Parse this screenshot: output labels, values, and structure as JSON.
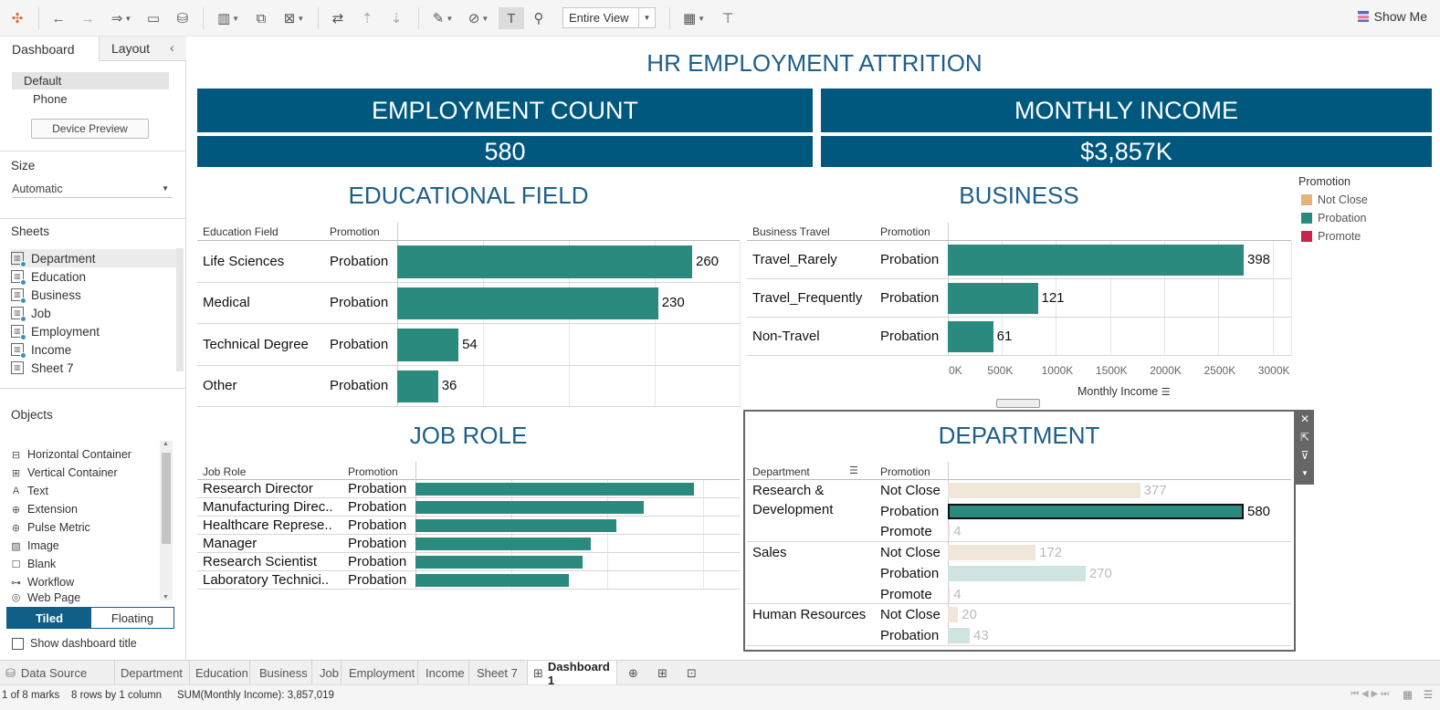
{
  "toolbar": {
    "view_select": "Entire View",
    "show_me": "Show Me"
  },
  "left_panel": {
    "tabs": [
      "Dashboard",
      "Layout"
    ],
    "device": {
      "default": "Default",
      "phone": "Phone",
      "preview_button": "Device Preview"
    },
    "size": {
      "title": "Size",
      "value": "Automatic"
    },
    "sheets": {
      "title": "Sheets",
      "items": [
        "Department",
        "Education",
        "Business",
        "Job",
        "Employment",
        "Income",
        "Sheet 7"
      ]
    },
    "objects": {
      "title": "Objects",
      "items": [
        "Horizontal Container",
        "Vertical Container",
        "Text",
        "Extension",
        "Pulse Metric",
        "Image",
        "Blank",
        "Workflow",
        "Web Page"
      ]
    },
    "layout_mode": {
      "tiled": "Tiled",
      "floating": "Floating"
    },
    "show_title_label": "Show dashboard title"
  },
  "dashboard": {
    "title": "HR EMPLOYMENT ATTRITION",
    "kpi": {
      "count_label": "EMPLOYMENT COUNT",
      "count_value": "580",
      "income_label": "MONTHLY INCOME",
      "income_value": "$3,857K"
    },
    "education": {
      "title": "EDUCATIONAL FIELD",
      "col1": "Education Field",
      "col2": "Promotion"
    },
    "business": {
      "title": "BUSINESS",
      "col1": "Business Travel",
      "col2": "Promotion",
      "axis_title": "Monthly Income"
    },
    "jobrole": {
      "title": "JOB ROLE",
      "col1": "Job Role",
      "col2": "Promotion"
    },
    "department": {
      "title": "DEPARTMENT",
      "col1": "Department",
      "col2": "Promotion"
    },
    "legend": {
      "title": "Promotion",
      "items": [
        {
          "label": "Not Close",
          "color": "#e8b07a"
        },
        {
          "label": "Probation",
          "color": "#2a8a7e"
        },
        {
          "label": "Promote",
          "color": "#c8234a"
        }
      ]
    }
  },
  "chart_data": [
    {
      "type": "bar",
      "title": "EDUCATIONAL FIELD",
      "categories": [
        "Life Sciences",
        "Medical",
        "Technical Degree",
        "Other"
      ],
      "series": [
        {
          "name": "Probation",
          "values": [
            260,
            230,
            54,
            36
          ]
        }
      ]
    },
    {
      "type": "bar",
      "title": "BUSINESS",
      "categories": [
        "Travel_Rarely",
        "Travel_Frequently",
        "Non-Travel"
      ],
      "series": [
        {
          "name": "Probation",
          "values": [
            398,
            121,
            61
          ]
        }
      ],
      "xlabel": "Monthly Income",
      "xticks": [
        "0K",
        "500K",
        "1000K",
        "1500K",
        "2000K",
        "2500K",
        "3000K"
      ]
    },
    {
      "type": "bar",
      "title": "JOB ROLE",
      "categories": [
        "Research Director",
        "Manufacturing Direc..",
        "Healthcare Represe..",
        "Manager",
        "Research Scientist",
        "Laboratory Technici.."
      ],
      "series": [
        {
          "name": "Probation",
          "values": [
            100,
            82,
            72,
            63,
            60,
            55
          ]
        }
      ]
    },
    {
      "type": "bar",
      "title": "DEPARTMENT",
      "groups": [
        {
          "department": "Research & Development",
          "rows": [
            {
              "promotion": "Not Close",
              "value": 377
            },
            {
              "promotion": "Probation",
              "value": 580
            },
            {
              "promotion": "Promote",
              "value": 4
            }
          ]
        },
        {
          "department": "Sales",
          "rows": [
            {
              "promotion": "Not Close",
              "value": 172
            },
            {
              "promotion": "Probation",
              "value": 270
            },
            {
              "promotion": "Promote",
              "value": 4
            }
          ]
        },
        {
          "department": "Human Resources",
          "rows": [
            {
              "promotion": "Not Close",
              "value": 20
            },
            {
              "promotion": "Probation",
              "value": 43
            }
          ]
        }
      ]
    }
  ],
  "bottom_tabs": [
    "Data Source",
    "Department",
    "Education",
    "Business",
    "Job",
    "Employment",
    "Income",
    "Sheet 7",
    "Dashboard 1"
  ],
  "status": {
    "marks": "1 of 8 marks",
    "rows": "8 rows by 1 column",
    "sum": "SUM(Monthly Income): 3,857,019"
  }
}
